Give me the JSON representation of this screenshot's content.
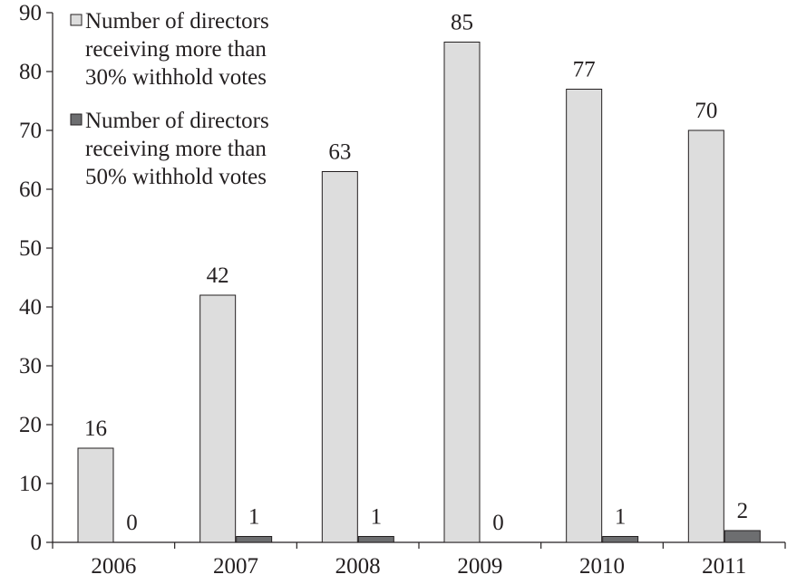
{
  "chart_data": {
    "type": "bar",
    "title": "",
    "xlabel": "",
    "ylabel": "",
    "categories": [
      "2006",
      "2007",
      "2008",
      "2009",
      "2010",
      "2011"
    ],
    "series": [
      {
        "name": "Number of directors receiving more than 30% withhold votes",
        "legend_lines": [
          "Number of directors",
          "receiving more than",
          "30% withhold votes"
        ],
        "values": [
          16,
          42,
          63,
          85,
          77,
          70
        ],
        "color": "#dddddd"
      },
      {
        "name": "Number of directors receiving more than 50% withhold votes",
        "legend_lines": [
          "Number of directors",
          "receiving more than",
          "50% withhold votes"
        ],
        "values": [
          0,
          1,
          1,
          0,
          1,
          2
        ],
        "color": "#6d6e70"
      }
    ],
    "ylim": [
      0,
      90
    ],
    "yticks": [
      0,
      10,
      20,
      30,
      40,
      50,
      60,
      70,
      80,
      90
    ],
    "grid": false,
    "legend_position": "top-left",
    "data_labels": true
  }
}
